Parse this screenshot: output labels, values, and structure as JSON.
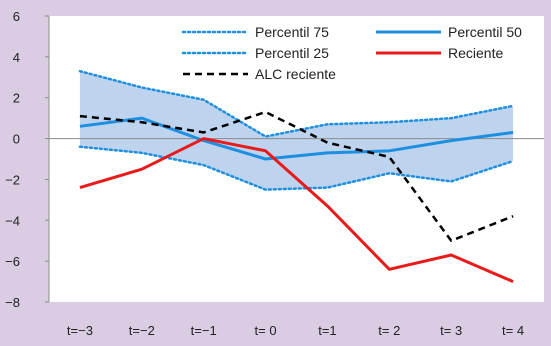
{
  "chart_data": {
    "type": "line",
    "title": "",
    "xlabel": "",
    "ylabel": "",
    "categories": [
      "t=−3",
      "t=−2",
      "t=−1",
      "t= 0",
      "t=1",
      "t= 2",
      "t= 3",
      "t= 4"
    ],
    "ylim": [
      -8,
      6
    ],
    "yticks": [
      -8,
      -6,
      -4,
      -2,
      0,
      2,
      4,
      6
    ],
    "ytick_labels": [
      "−8",
      "−6",
      "−4",
      "−2",
      "0",
      "2",
      "4",
      "6"
    ],
    "grid": false,
    "shaded_band": {
      "between": [
        "Percentil 25",
        "Percentil 75"
      ],
      "color": "#bdd3ee"
    },
    "legend_placement": "top",
    "series": [
      {
        "name": "Percentil 75",
        "style": "dotted",
        "color": "#1e8fe0",
        "values": [
          3.3,
          2.5,
          1.9,
          0.1,
          0.7,
          0.8,
          1.0,
          1.6
        ]
      },
      {
        "name": "Percentil 50",
        "style": "solid",
        "color": "#1e8fe0",
        "values": [
          0.6,
          1.0,
          -0.1,
          -1.0,
          -0.7,
          -0.6,
          -0.1,
          0.3
        ]
      },
      {
        "name": "Percentil 25",
        "style": "dotted",
        "color": "#1e8fe0",
        "values": [
          -0.4,
          -0.7,
          -1.3,
          -2.5,
          -2.4,
          -1.7,
          -2.1,
          -1.1
        ]
      },
      {
        "name": "Reciente",
        "style": "solid",
        "color": "#e81a1a",
        "values": [
          -2.4,
          -1.5,
          -0.0,
          -0.6,
          -3.3,
          -6.4,
          -5.7,
          -7.0
        ]
      },
      {
        "name": "ALC reciente",
        "style": "dashed",
        "color": "#000000",
        "values": [
          1.1,
          0.8,
          0.3,
          1.3,
          -0.2,
          -0.9,
          -5.0,
          -3.8
        ]
      }
    ]
  }
}
